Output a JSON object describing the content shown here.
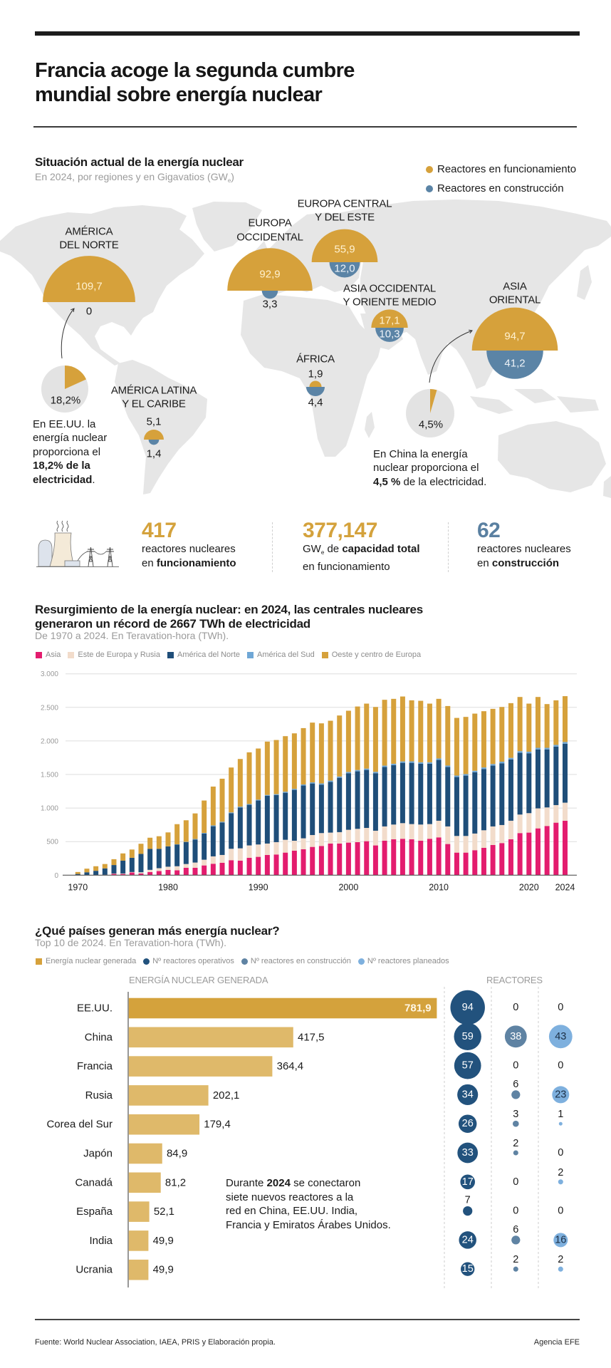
{
  "header": {
    "title_lines": [
      "Francia acoge la segunda cumbre",
      "mundial sobre energía nuclear"
    ]
  },
  "map": {
    "title": "Situación actual de la energía nuclear",
    "subtitle_pre": "En 2024, por regiones y en Gigavatios (GW",
    "subtitle_sub": "e",
    "subtitle_post": ")",
    "legend": [
      {
        "label": "Reactores en funcionamiento",
        "color": "#d6a13b"
      },
      {
        "label": "Reactores en construcción",
        "color": "#5b84a6"
      }
    ],
    "regions": [
      {
        "label_lines": [
          "AMÉRICA",
          "DEL NORTE"
        ],
        "operating_gw": 109.7,
        "operating_label": "109,7",
        "construction_gw": 0,
        "construction_label": "0"
      },
      {
        "label_lines": [
          "AMÉRICA LATINA",
          "Y EL CARIBE"
        ],
        "operating_gw": 5.1,
        "operating_label": "5,1",
        "construction_gw": 1.4,
        "construction_label": "1,4"
      },
      {
        "label_lines": [
          "EUROPA",
          "OCCIDENTAL"
        ],
        "operating_gw": 92.9,
        "operating_label": "92,9",
        "construction_gw": 3.3,
        "construction_label": "3,3"
      },
      {
        "label_lines": [
          "EUROPA CENTRAL",
          "Y DEL ESTE"
        ],
        "operating_gw": 55.9,
        "operating_label": "55,9",
        "construction_gw": 12.0,
        "construction_label": "12,0"
      },
      {
        "label_lines": [
          "ASIA OCCIDENTAL",
          "Y ORIENTE MEDIO"
        ],
        "operating_gw": 17.1,
        "operating_label": "17,1",
        "construction_gw": 10.3,
        "construction_label": "10,3"
      },
      {
        "label_lines": [
          "ÁFRICA"
        ],
        "operating_gw": 1.9,
        "operating_label": "1,9",
        "construction_gw": 4.4,
        "construction_label": "4,4"
      },
      {
        "label_lines": [
          "ASIA",
          "ORIENTAL"
        ],
        "operating_gw": 94.7,
        "operating_label": "94,7",
        "construction_gw": 41.2,
        "construction_label": "41,2"
      }
    ],
    "share_pies": [
      {
        "country": "EE.UU.",
        "share_pct": 18.2,
        "label": "18,2%"
      },
      {
        "country": "China",
        "share_pct": 4.5,
        "label": "4,5%"
      }
    ],
    "pie_colors": {
      "share": "#d6a13b",
      "rest": "#e3e3e3"
    },
    "us_note": {
      "lines": [
        "En EE.UU. la",
        "energía nuclear",
        "proporciona el"
      ],
      "bold_line": "18,2% de la",
      "bold_end": "electricidad",
      "end": "."
    },
    "china_note": {
      "lines": [
        "En China la energía",
        "nuclear proporciona el"
      ],
      "bold": "4,5 %",
      "rest": " de la electricidad."
    }
  },
  "stats": [
    {
      "number": "417",
      "color": "#d4a23c",
      "line1": "reactores nucleares",
      "line2_pre": "en ",
      "line2_bold": "funcionamiento"
    },
    {
      "number": "377,147",
      "color": "#d4a23c",
      "line1_pre": "GW",
      "line1_sub": "e",
      "line1_mid": " de ",
      "line1_bold": "capacidad total",
      "line2": "en funcionamiento"
    },
    {
      "number": "62",
      "color": "#5a80a1",
      "line1": "reactores nucleares",
      "line2_pre": "en ",
      "line2_bold": "construcción"
    }
  ],
  "chart_data": [
    {
      "type": "bar",
      "stacked": true,
      "title": "Resurgimiento de la energía nuclear: en 2024, las centrales nucleares generaron un récord de 2667 TWh de electricidad",
      "title_lines": [
        "Resurgimiento de la energía nuclear: en 2024, las centrales nucleares",
        "generaron un récord de 2667 TWh de electricidad"
      ],
      "subtitle": "De 1970 a 2024. En Teravation-hora (TWh).",
      "xlabel": "",
      "ylabel": "TWh",
      "ylim": [
        0,
        3000
      ],
      "yticks": [
        0,
        500,
        1000,
        1500,
        2000,
        2500,
        3000
      ],
      "ytick_labels": [
        "0",
        "500",
        "1.000",
        "1.500",
        "2.000",
        "2.500",
        "3.000"
      ],
      "xticks": [
        1970,
        1980,
        1990,
        2000,
        2010,
        2020,
        2024
      ],
      "xtick_labels": [
        "1970",
        "1980",
        "1990",
        "2000",
        "2010",
        "2020",
        "2024"
      ],
      "grid": true,
      "legend_position": "top-left",
      "categories": [
        1970,
        1971,
        1972,
        1973,
        1974,
        1975,
        1976,
        1977,
        1978,
        1979,
        1980,
        1981,
        1982,
        1983,
        1984,
        1985,
        1986,
        1987,
        1988,
        1989,
        1990,
        1991,
        1992,
        1993,
        1994,
        1995,
        1996,
        1997,
        1998,
        1999,
        2000,
        2001,
        2002,
        2003,
        2004,
        2005,
        2006,
        2007,
        2008,
        2009,
        2010,
        2011,
        2012,
        2013,
        2014,
        2015,
        2016,
        2017,
        2018,
        2019,
        2020,
        2021,
        2022,
        2023,
        2024
      ],
      "series": [
        {
          "name": "Asia",
          "color": "#e31c6e",
          "values": [
            0,
            0,
            2,
            5,
            20,
            18,
            40,
            25,
            47,
            61,
            79,
            72,
            110,
            110,
            145,
            170,
            184,
            223,
            216,
            258,
            273,
            301,
            308,
            336,
            365,
            386,
            421,
            435,
            471,
            471,
            485,
            492,
            506,
            443,
            513,
            535,
            542,
            535,
            513,
            542,
            563,
            464,
            336,
            336,
            372,
            407,
            450,
            478,
            535,
            627,
            634,
            697,
            733,
            782,
            811
          ]
        },
        {
          "name": "Este de Europa y Rusia",
          "color": "#f2dccb",
          "values": [
            0,
            0,
            0,
            0,
            5,
            7,
            7,
            18,
            32,
            43,
            47,
            61,
            56,
            78,
            85,
            110,
            117,
            170,
            184,
            185,
            184,
            170,
            184,
            191,
            148,
            163,
            177,
            192,
            163,
            170,
            191,
            198,
            198,
            219,
            213,
            219,
            233,
            226,
            241,
            219,
            248,
            262,
            248,
            248,
            248,
            262,
            276,
            269,
            276,
            276,
            290,
            298,
            276,
            262,
            269
          ]
        },
        {
          "name": "América del Norte",
          "color": "#1f4e79",
          "values": [
            18,
            43,
            63,
            96,
            126,
            191,
            212,
            274,
            313,
            288,
            302,
            324,
            326,
            343,
            389,
            449,
            485,
            531,
            609,
            605,
            655,
            711,
            701,
            701,
            758,
            786,
            768,
            722,
            757,
            810,
            843,
            857,
            864,
            857,
            885,
            885,
            899,
            913,
            906,
            899,
            906,
            885,
            878,
            899,
            913,
            913,
            906,
            920,
            913,
            920,
            892,
            878,
            864,
            871,
            878
          ]
        },
        {
          "name": "América del Sud",
          "color": "#6fa7d6",
          "values": [
            0,
            0,
            0,
            0,
            0,
            0,
            0,
            0,
            0,
            0,
            2,
            3,
            5,
            8,
            10,
            12,
            10,
            11,
            12,
            12,
            13,
            13,
            14,
            15,
            15,
            16,
            17,
            18,
            18,
            19,
            19,
            20,
            20,
            20,
            21,
            21,
            21,
            22,
            22,
            22,
            22,
            22,
            22,
            23,
            23,
            23,
            24,
            24,
            24,
            25,
            24,
            25,
            25,
            26,
            26
          ]
        },
        {
          "name": "Oeste y centro de Europa",
          "color": "#d6a13b",
          "values": [
            29,
            54,
            68,
            65,
            87,
            108,
            123,
            151,
            166,
            188,
            207,
            300,
            321,
            381,
            483,
            579,
            641,
            669,
            710,
            770,
            762,
            795,
            807,
            828,
            827,
            840,
            890,
            895,
            892,
            909,
            912,
            946,
            968,
            967,
            981,
            967,
            967,
            909,
            916,
            874,
            888,
            887,
            859,
            852,
            851,
            838,
            822,
            815,
            815,
            807,
            716,
            757,
            651,
            664,
            683
          ]
        }
      ]
    },
    {
      "type": "bar",
      "orientation": "horizontal",
      "title": "¿Qué países generan más energía nuclear?",
      "subtitle": "Top 10 de 2024. En Teravation-hora (TWh).",
      "legend": [
        {
          "label": "Energía nuclear generada",
          "shape": "square",
          "color": "#d6a13b"
        },
        {
          "label": "Nº reactores operativos",
          "shape": "circle",
          "color": "#22527d"
        },
        {
          "label": "Nº reactores en construcción",
          "shape": "circle",
          "color": "#5f83a3"
        },
        {
          "label": "Nº reactores planeados",
          "shape": "circle",
          "color": "#7eb0de"
        }
      ],
      "column_headers": {
        "energy": "ENERGÍA NUCLEAR GENERADA",
        "reactors": "REACTORES"
      },
      "xlabel": "TWh",
      "categories": [
        "EE.UU.",
        "China",
        "Francia",
        "Rusia",
        "Corea del Sur",
        "Japón",
        "Canadá",
        "España",
        "India",
        "Ucrania"
      ],
      "values": [
        781.9,
        417.5,
        364.4,
        202.1,
        179.4,
        84.9,
        81.2,
        52.1,
        49.9,
        49.9
      ],
      "value_labels": [
        "781,9",
        "417,5",
        "364,4",
        "202,1",
        "179,4",
        "84,9",
        "81,2",
        "52,1",
        "49,9",
        "49,9"
      ],
      "bar_colors": {
        "highlight": "#d4a23c",
        "default": "#dfb96a"
      },
      "reactors": {
        "operational": [
          94,
          59,
          57,
          34,
          26,
          33,
          17,
          7,
          24,
          15
        ],
        "under_construction": [
          0,
          38,
          0,
          6,
          3,
          2,
          0,
          0,
          6,
          2
        ],
        "planned": [
          0,
          43,
          0,
          23,
          1,
          0,
          2,
          0,
          16,
          2
        ]
      },
      "note": {
        "line1_pre": "Durante ",
        "line1_bold": "2024",
        "line1_post": " se conectaron",
        "lines": [
          "siete nuevos reactores a la",
          "red en China, EE.UU. India,",
          "Francia y Emiratos Árabes Unidos."
        ]
      }
    }
  ],
  "footer": {
    "source": "Fuente: World Nuclear Association, IAEA, PRIS y Elaboración propia.",
    "credit": "Agencia EFE"
  }
}
